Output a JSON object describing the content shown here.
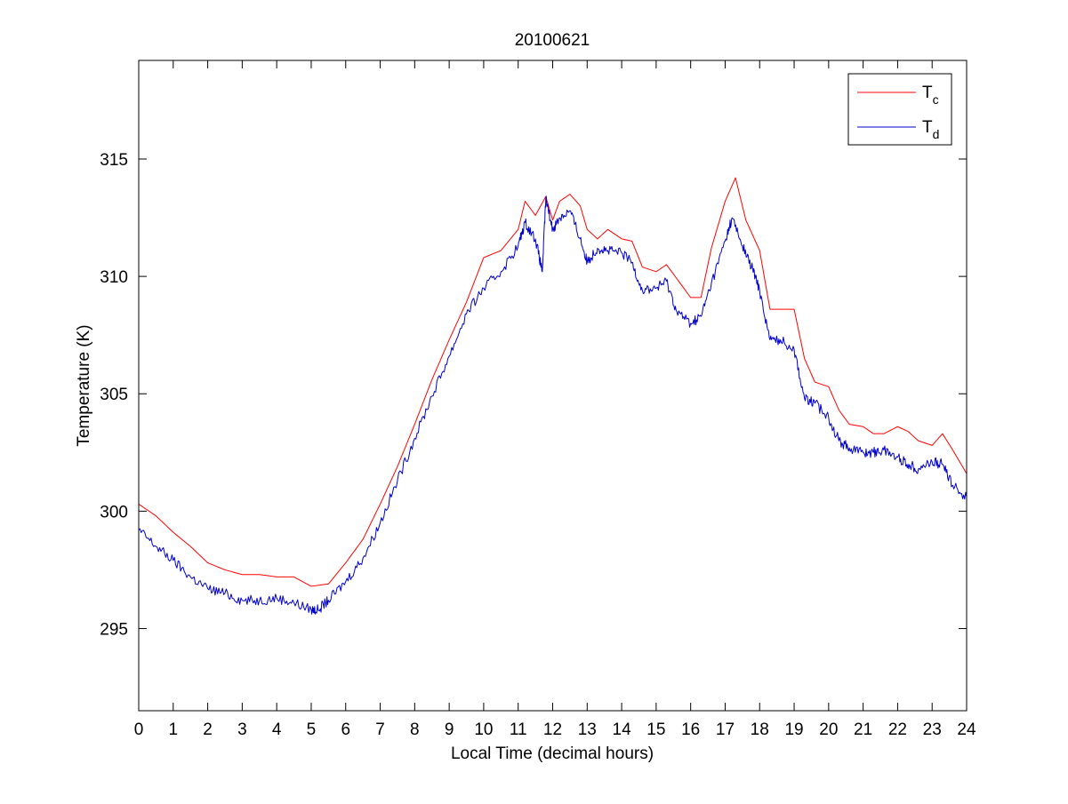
{
  "chart_data": {
    "type": "line",
    "title": "20100621",
    "xlabel": "Local Time (decimal hours)",
    "ylabel": "Temperature (K)",
    "xlim": [
      0,
      24
    ],
    "ylim": [
      291.5,
      319.2
    ],
    "xticks": [
      0,
      1,
      2,
      3,
      4,
      5,
      6,
      7,
      8,
      9,
      10,
      11,
      12,
      13,
      14,
      15,
      16,
      17,
      18,
      19,
      20,
      21,
      22,
      23,
      24
    ],
    "xtick_labels": [
      "0",
      "1",
      "2",
      "3",
      "4",
      "5",
      "6",
      "7",
      "8",
      "9",
      "10",
      "11",
      "12",
      "13",
      "14",
      "15",
      "16",
      "17",
      "18",
      "19",
      "20",
      "21",
      "22",
      "23",
      "24"
    ],
    "yticks": [
      295,
      300,
      305,
      310,
      315
    ],
    "ytick_labels": [
      "295",
      "300",
      "305",
      "310",
      "315"
    ],
    "grid": false,
    "legend": {
      "position": "top-right",
      "entries": [
        {
          "base": "T",
          "sub": "c",
          "color": "#ff0000"
        },
        {
          "base": "T",
          "sub": "d",
          "color": "#0000cc"
        }
      ]
    },
    "series": [
      {
        "name": "Tc",
        "color": "#ff0000",
        "x": [
          0,
          0.5,
          1,
          1.5,
          2,
          2.5,
          3,
          3.5,
          4,
          4.5,
          5,
          5.5,
          6,
          6.5,
          7,
          7.5,
          8,
          8.5,
          9,
          9.5,
          10,
          10.5,
          11,
          11.2,
          11.5,
          11.8,
          12,
          12.2,
          12.5,
          12.8,
          13,
          13.3,
          13.6,
          14,
          14.3,
          14.6,
          15,
          15.3,
          15.6,
          16,
          16.3,
          16.6,
          17,
          17.3,
          17.6,
          18,
          18.3,
          18.6,
          19,
          19.3,
          19.6,
          20,
          20.3,
          20.6,
          21,
          21.3,
          21.6,
          22,
          22.3,
          22.6,
          23,
          23.3,
          23.6,
          24
        ],
        "y": [
          300.3,
          299.8,
          299.1,
          298.5,
          297.8,
          297.5,
          297.3,
          297.3,
          297.2,
          297.2,
          296.8,
          296.9,
          297.8,
          298.8,
          300.3,
          301.9,
          303.7,
          305.6,
          307.3,
          308.9,
          310.8,
          311.1,
          312.0,
          313.2,
          312.6,
          313.4,
          312.4,
          313.2,
          313.5,
          313.0,
          312.0,
          311.6,
          312.0,
          311.6,
          311.5,
          310.4,
          310.2,
          310.5,
          309.9,
          309.1,
          309.1,
          311.2,
          313.2,
          314.2,
          312.4,
          311.1,
          308.6,
          308.6,
          308.6,
          306.5,
          305.5,
          305.3,
          304.3,
          303.7,
          303.6,
          303.3,
          303.3,
          303.6,
          303.4,
          303.0,
          302.8,
          303.3,
          302.6,
          301.6
        ]
      },
      {
        "name": "Td",
        "color": "#0000cc",
        "x": [
          0,
          0.5,
          1,
          1.5,
          2,
          2.5,
          3,
          3.5,
          4,
          4.5,
          5,
          5.2,
          5.5,
          6,
          6.5,
          7,
          7.5,
          8,
          8.5,
          9,
          9.5,
          10,
          10.5,
          11,
          11.2,
          11.5,
          11.7,
          11.8,
          12,
          12.2,
          12.5,
          12.8,
          13,
          13.3,
          13.6,
          14,
          14.3,
          14.6,
          15,
          15.3,
          15.6,
          16,
          16.3,
          16.6,
          17,
          17.2,
          17.5,
          17.8,
          18,
          18.3,
          18.6,
          19,
          19.3,
          19.6,
          20,
          20.3,
          20.6,
          21,
          21.3,
          21.6,
          22,
          22.3,
          22.6,
          23,
          23.3,
          23.6,
          24
        ],
        "y": [
          299.2,
          298.5,
          297.9,
          297.2,
          296.7,
          296.5,
          296.2,
          296.2,
          296.3,
          296.1,
          295.8,
          295.8,
          296.2,
          297.0,
          298.0,
          299.5,
          301.3,
          303.1,
          304.9,
          306.6,
          308.4,
          309.5,
          310.2,
          311.3,
          312.3,
          311.6,
          310.2,
          313.3,
          312.0,
          312.5,
          312.8,
          311.6,
          310.6,
          311.2,
          311.1,
          311.0,
          310.6,
          309.4,
          309.5,
          309.8,
          308.5,
          308.0,
          308.3,
          309.7,
          311.5,
          312.5,
          311.3,
          310.3,
          309.4,
          307.3,
          307.3,
          306.9,
          304.8,
          304.6,
          304.0,
          303.0,
          302.7,
          302.5,
          302.5,
          302.6,
          302.3,
          302.0,
          301.8,
          302.1,
          302.0,
          301.1,
          300.6
        ]
      }
    ]
  }
}
